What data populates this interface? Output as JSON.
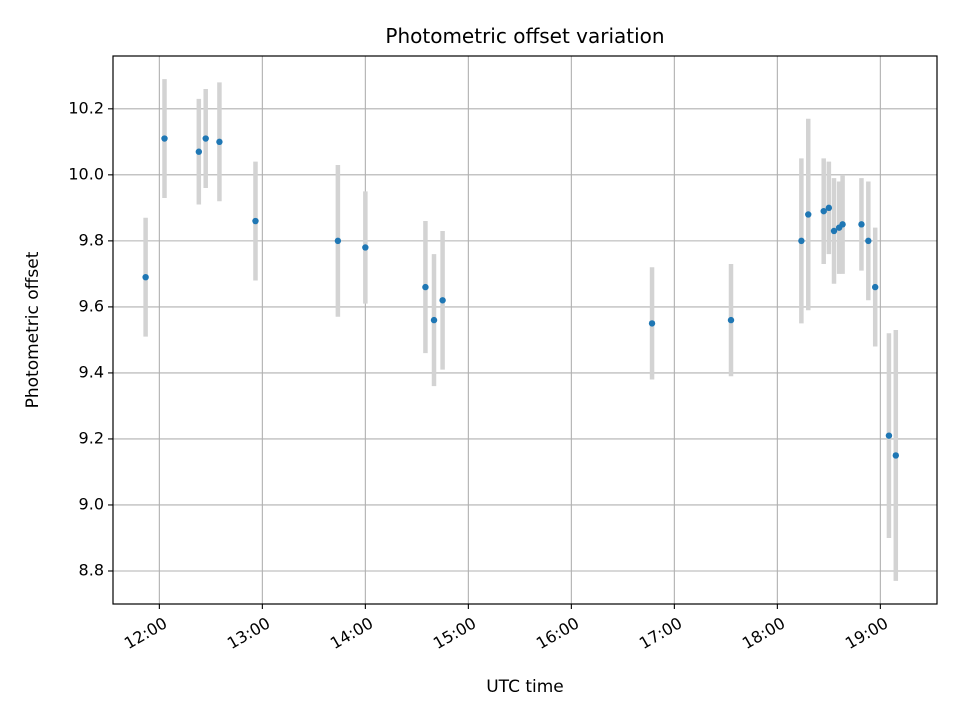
{
  "chart_data": {
    "type": "scatter",
    "title": "Photometric offset variation",
    "xlabel": "UTC time",
    "ylabel": "Photometric offset",
    "x_tick_labels": [
      "12:00",
      "13:00",
      "14:00",
      "15:00",
      "16:00",
      "17:00",
      "18:00",
      "19:00"
    ],
    "y_tick_labels": [
      "8.8",
      "9.0",
      "9.2",
      "9.4",
      "9.6",
      "9.8",
      "10.0",
      "10.2"
    ],
    "y_ticks": [
      8.8,
      9.0,
      9.2,
      9.4,
      9.6,
      9.8,
      10.0,
      10.2
    ],
    "xlim": [
      "11:33",
      "19:33"
    ],
    "ylim": [
      8.7,
      10.36
    ],
    "grid": true,
    "colors": {
      "marker": "#1f77b4",
      "errorbar": "#d3d3d3",
      "grid": "#b0b0b0",
      "axes": "#000000"
    },
    "points": [
      {
        "time": "11:52",
        "y": 9.69,
        "err": 0.18
      },
      {
        "time": "12:03",
        "y": 10.11,
        "err": 0.18
      },
      {
        "time": "12:23",
        "y": 10.07,
        "err": 0.16
      },
      {
        "time": "12:27",
        "y": 10.11,
        "err": 0.15
      },
      {
        "time": "12:35",
        "y": 10.1,
        "err": 0.18
      },
      {
        "time": "12:56",
        "y": 9.86,
        "err": 0.18
      },
      {
        "time": "13:44",
        "y": 9.8,
        "err": 0.23
      },
      {
        "time": "14:00",
        "y": 9.78,
        "err": 0.17
      },
      {
        "time": "14:35",
        "y": 9.66,
        "err": 0.2
      },
      {
        "time": "14:40",
        "y": 9.56,
        "err": 0.2
      },
      {
        "time": "14:45",
        "y": 9.62,
        "err": 0.21
      },
      {
        "time": "16:47",
        "y": 9.55,
        "err": 0.17
      },
      {
        "time": "17:33",
        "y": 9.56,
        "err": 0.17
      },
      {
        "time": "18:14",
        "y": 9.8,
        "err": 0.25
      },
      {
        "time": "18:18",
        "y": 9.88,
        "err": 0.29
      },
      {
        "time": "18:27",
        "y": 9.89,
        "err": 0.16
      },
      {
        "time": "18:30",
        "y": 9.9,
        "err": 0.14
      },
      {
        "time": "18:33",
        "y": 9.83,
        "err": 0.16
      },
      {
        "time": "18:36",
        "y": 9.84,
        "err": 0.14
      },
      {
        "time": "18:38",
        "y": 9.85,
        "err": 0.15
      },
      {
        "time": "18:49",
        "y": 9.85,
        "err": 0.14
      },
      {
        "time": "18:53",
        "y": 9.8,
        "err": 0.18
      },
      {
        "time": "18:57",
        "y": 9.66,
        "err": 0.18
      },
      {
        "time": "19:05",
        "y": 9.21,
        "err": 0.31
      },
      {
        "time": "19:09",
        "y": 9.15,
        "err": 0.38
      }
    ]
  }
}
